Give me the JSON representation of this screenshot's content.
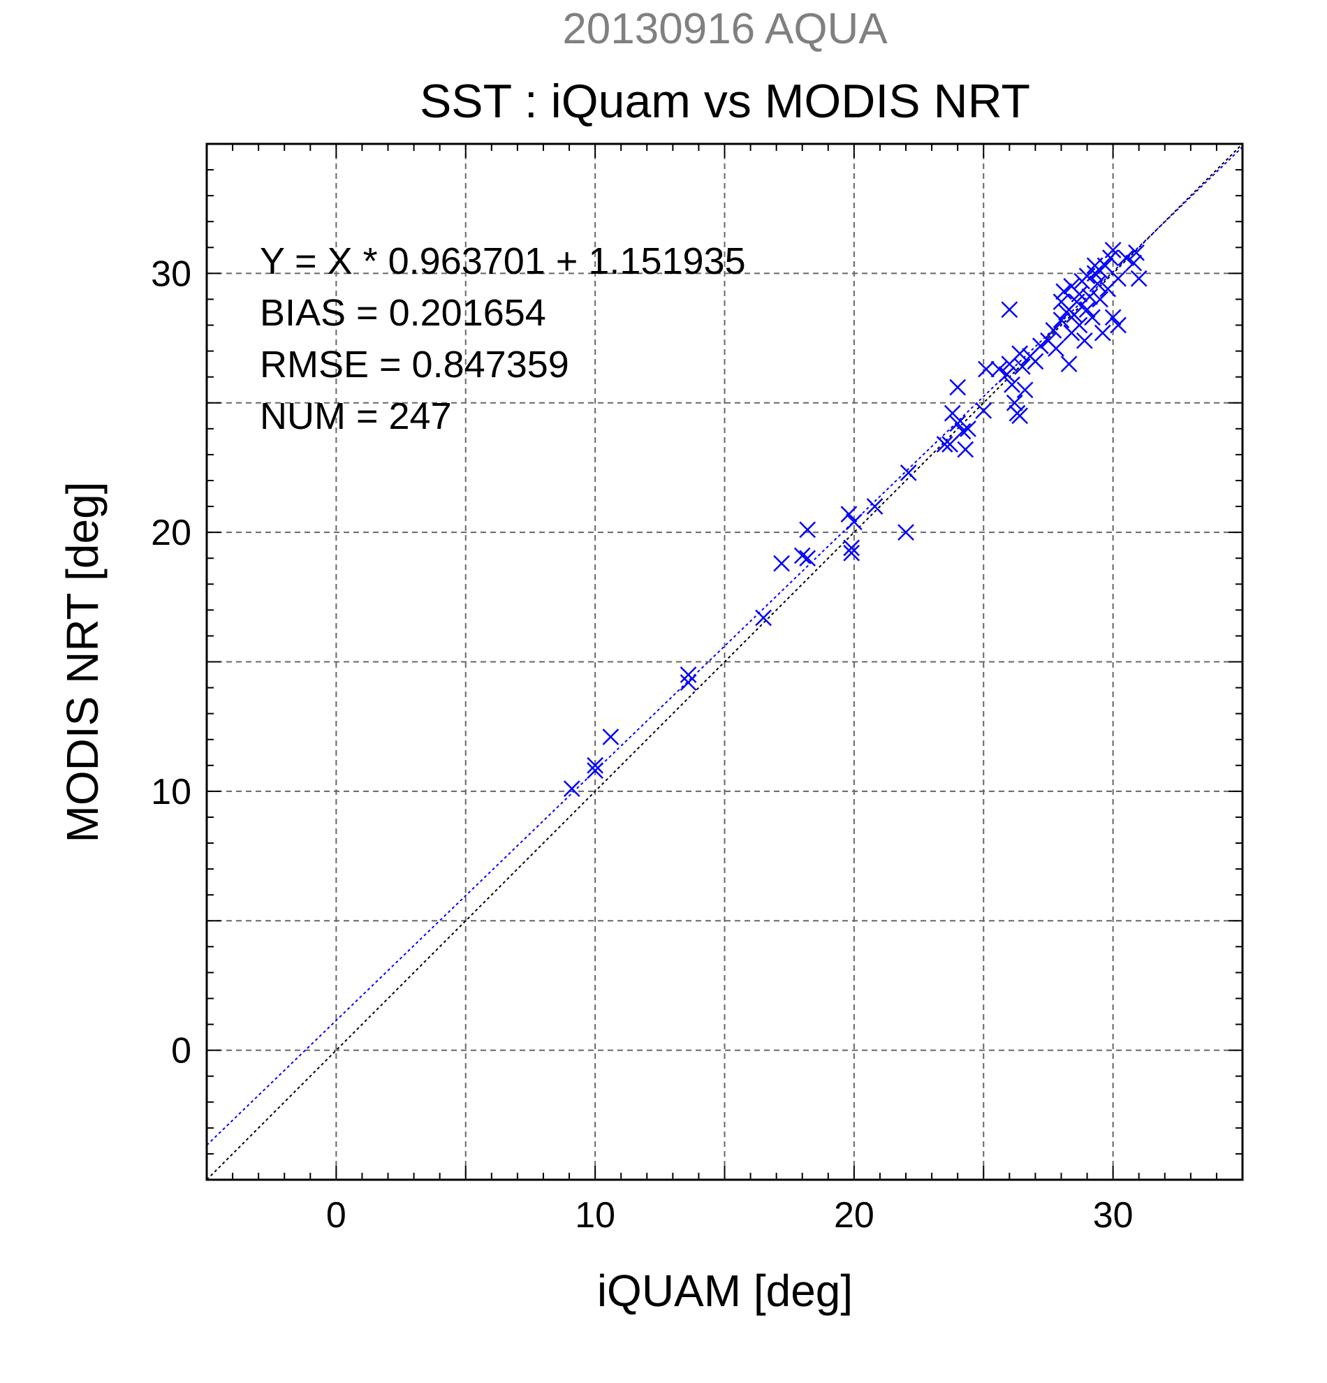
{
  "chart_data": {
    "type": "scatter",
    "title": "SST : iQuam vs MODIS NRT",
    "subtitle": "20130916 AQUA",
    "xlabel": "iQUAM [deg]",
    "ylabel": "MODIS NRT [deg]",
    "xlim": [
      -5,
      35
    ],
    "ylim": [
      -5,
      35
    ],
    "xticks": [
      0,
      10,
      20,
      30
    ],
    "yticks": [
      0,
      10,
      20,
      30
    ],
    "xtick_labels": [
      "0",
      "10",
      "20",
      "30"
    ],
    "ytick_labels": [
      "0",
      "10",
      "20",
      "30"
    ],
    "minor_tick_step": 1,
    "grid_step": 5,
    "grid": true,
    "stats": [
      "Y = X * 0.963701 + 1.151935",
      "BIAS = 0.201654",
      "RMSE = 0.847359",
      "NUM = 247"
    ],
    "fit": {
      "slope": 0.963701,
      "intercept": 1.151935,
      "color": "#0000ff",
      "style": "dotted"
    },
    "identity_line": {
      "color": "#000000",
      "style": "dotted"
    },
    "marker": "x",
    "series": [
      {
        "color": "#0000ff",
        "points": [
          [
            9.1,
            10.1
          ],
          [
            10.0,
            11.0
          ],
          [
            10.0,
            10.8
          ],
          [
            10.6,
            12.1
          ],
          [
            13.6,
            14.5
          ],
          [
            13.6,
            14.2
          ],
          [
            16.5,
            16.7
          ],
          [
            17.2,
            18.8
          ],
          [
            18.0,
            19.1
          ],
          [
            18.2,
            19.0
          ],
          [
            18.2,
            20.1
          ],
          [
            19.8,
            20.7
          ],
          [
            19.9,
            19.4
          ],
          [
            19.9,
            19.2
          ],
          [
            20.0,
            20.4
          ],
          [
            20.8,
            21.0
          ],
          [
            22.0,
            20.0
          ],
          [
            22.1,
            22.3
          ],
          [
            23.5,
            23.4
          ],
          [
            23.7,
            23.4
          ],
          [
            23.8,
            24.6
          ],
          [
            24.0,
            25.6
          ],
          [
            24.0,
            24.2
          ],
          [
            24.2,
            23.9
          ],
          [
            24.3,
            23.2
          ],
          [
            24.4,
            24.0
          ],
          [
            25.0,
            24.7
          ],
          [
            25.1,
            26.3
          ],
          [
            25.6,
            26.3
          ],
          [
            25.9,
            26.1
          ],
          [
            26.0,
            28.6
          ],
          [
            26.0,
            26.5
          ],
          [
            26.1,
            25.7
          ],
          [
            26.2,
            25.0
          ],
          [
            26.3,
            24.6
          ],
          [
            26.4,
            24.5
          ],
          [
            26.4,
            26.9
          ],
          [
            26.5,
            26.4
          ],
          [
            26.6,
            25.5
          ],
          [
            26.8,
            26.8
          ],
          [
            27.0,
            26.6
          ],
          [
            27.2,
            27.2
          ],
          [
            27.5,
            27.4
          ],
          [
            27.7,
            27.8
          ],
          [
            27.8,
            27.1
          ],
          [
            28.0,
            28.9
          ],
          [
            28.0,
            28.2
          ],
          [
            28.1,
            29.3
          ],
          [
            28.2,
            28.5
          ],
          [
            28.3,
            26.5
          ],
          [
            28.4,
            27.7
          ],
          [
            28.4,
            29.5
          ],
          [
            28.5,
            28.4
          ],
          [
            28.6,
            28.9
          ],
          [
            28.7,
            28.0
          ],
          [
            28.7,
            29.2
          ],
          [
            28.8,
            29.7
          ],
          [
            28.9,
            27.4
          ],
          [
            29.0,
            28.6
          ],
          [
            29.0,
            29.9
          ],
          [
            29.1,
            29.1
          ],
          [
            29.2,
            28.3
          ],
          [
            29.3,
            30.0
          ],
          [
            29.3,
            30.3
          ],
          [
            29.4,
            29.6
          ],
          [
            29.5,
            29.0
          ],
          [
            29.5,
            30.1
          ],
          [
            29.6,
            27.7
          ],
          [
            29.7,
            30.3
          ],
          [
            29.8,
            29.4
          ],
          [
            29.9,
            30.6
          ],
          [
            30.0,
            28.3
          ],
          [
            30.0,
            30.9
          ],
          [
            30.2,
            29.8
          ],
          [
            30.2,
            28.0
          ],
          [
            30.5,
            30.6
          ],
          [
            30.8,
            30.4
          ],
          [
            30.9,
            30.8
          ],
          [
            31.0,
            29.8
          ]
        ]
      }
    ]
  }
}
